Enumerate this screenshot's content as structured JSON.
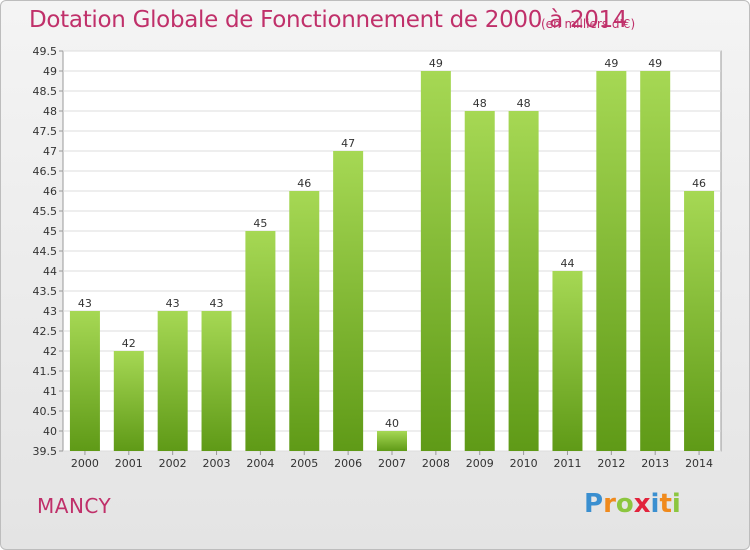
{
  "title": "Dotation Globale de Fonctionnement de 2000 à 2014",
  "subtitle": "(en milliers d'€)",
  "commune": "MANCY",
  "logo": {
    "letters": [
      "P",
      "r",
      "o",
      "x",
      "i",
      "t",
      "i"
    ],
    "colors": [
      "#3a8fd0",
      "#f08a1c",
      "#8cc63f",
      "#e2233c",
      "#3a8fd0",
      "#f08a1c",
      "#8cc63f"
    ]
  },
  "colors": {
    "title": "#c0306a",
    "bar_light": "#a6d854",
    "bar_dark": "#5f9a17"
  },
  "chart_data": {
    "type": "bar",
    "title": "Dotation Globale de Fonctionnement de 2000 à 2014",
    "subtitle": "(en milliers d'€)",
    "categories": [
      "2000",
      "2001",
      "2002",
      "2003",
      "2004",
      "2005",
      "2006",
      "2007",
      "2008",
      "2009",
      "2010",
      "2011",
      "2012",
      "2013",
      "2014"
    ],
    "values": [
      43,
      42,
      43,
      43,
      45,
      46,
      47,
      40,
      49,
      48,
      48,
      44,
      49,
      49,
      46
    ],
    "data_labels": [
      "43",
      "42",
      "43",
      "43",
      "45",
      "46",
      "47",
      "40",
      "49",
      "48",
      "48",
      "44",
      "49",
      "49",
      "46"
    ],
    "ylim": [
      39.5,
      49.5
    ],
    "yticks": [
      "39.5",
      "40",
      "40.5",
      "41",
      "41.5",
      "42",
      "42.5",
      "43",
      "43.5",
      "44",
      "44.5",
      "45",
      "45.5",
      "46",
      "46.5",
      "47",
      "47.5",
      "48",
      "48.5",
      "49",
      "49.5"
    ],
    "xlabel": "",
    "ylabel": "",
    "grid": true,
    "legend": "none"
  }
}
